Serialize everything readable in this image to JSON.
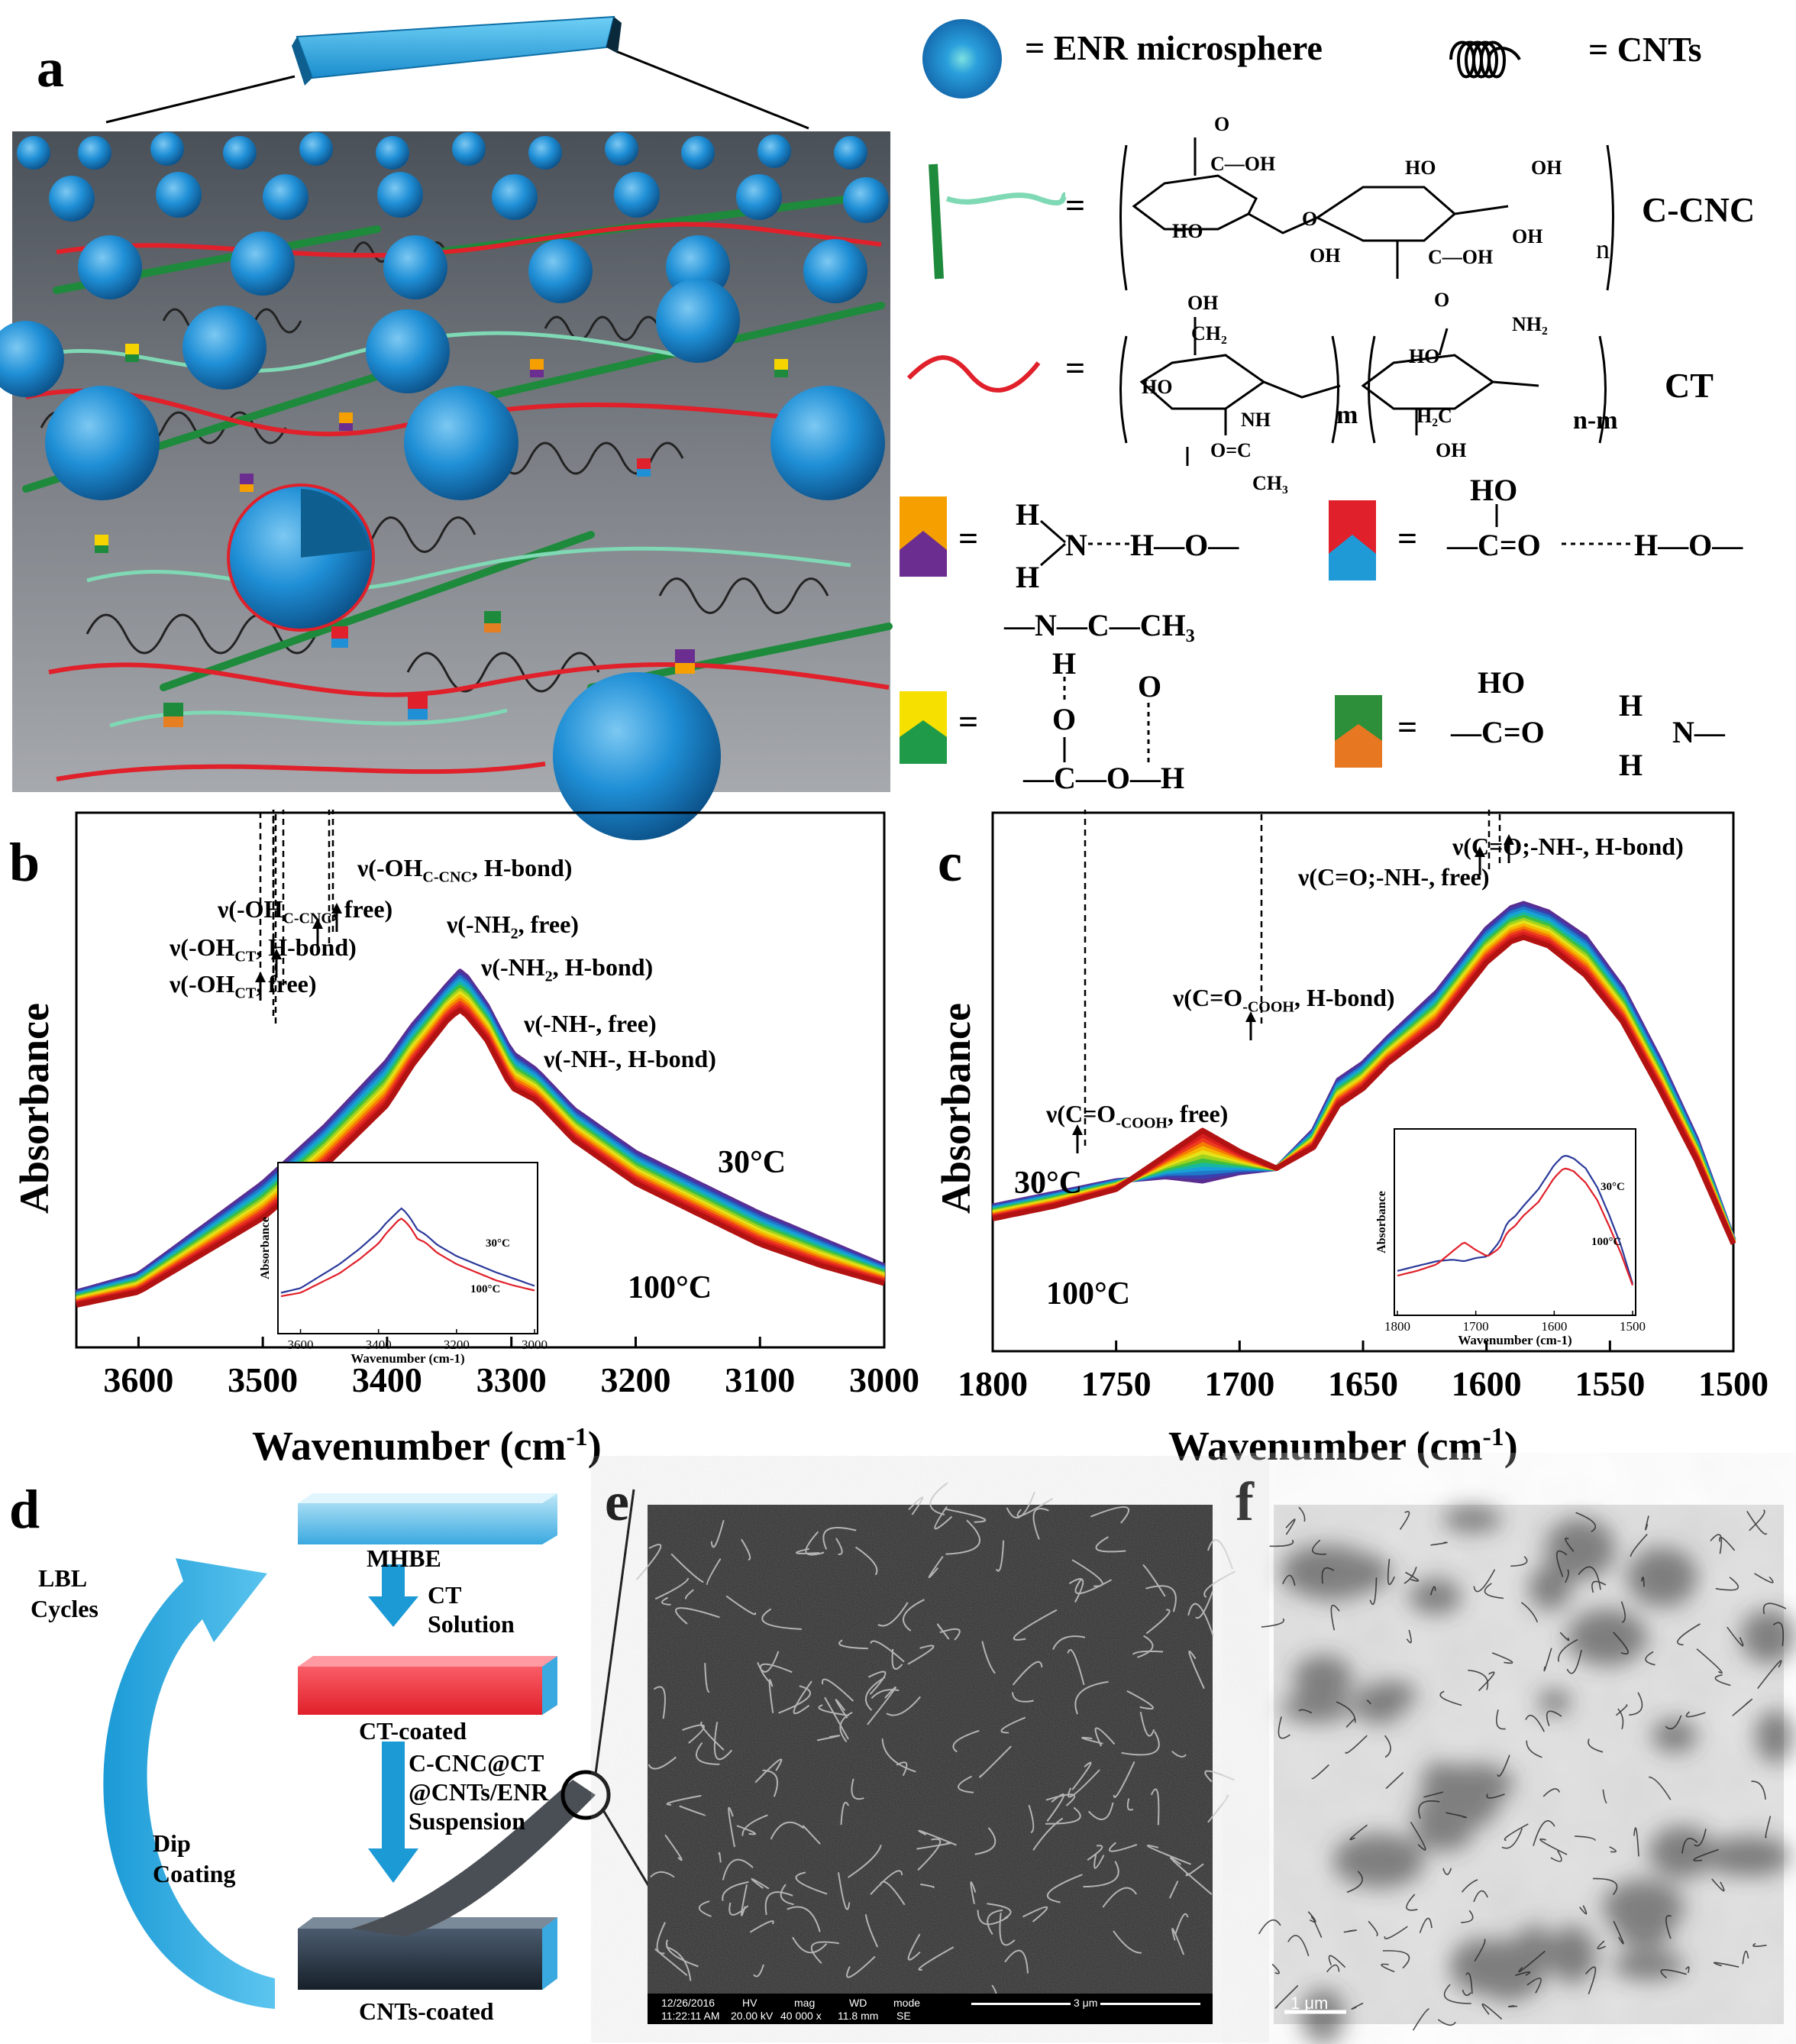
{
  "panels": {
    "a": "a",
    "b": "b",
    "c": "c",
    "d": "d",
    "e": "e",
    "f": "f"
  },
  "legend": {
    "enr": "= ENR microsphere",
    "cnts": "= CNTs",
    "ccnc_label": "C-CNC",
    "ct_label": "CT",
    "eq": "="
  },
  "chem": {
    "ccnc_groups": [
      "O",
      "C—OH",
      "HO",
      "OH",
      "HO",
      "OH",
      "OH",
      "O",
      "C—OH",
      "O",
      "n"
    ],
    "ct_groups": [
      "OH",
      "CH₂",
      "HO",
      "NH",
      "O=C",
      "CH₃",
      "m",
      "NH₂",
      "HO",
      "H₂C",
      "OH",
      "n-m"
    ],
    "hb1": [
      "H",
      "N",
      "H",
      "H—O—"
    ],
    "hb2": [
      "HO",
      "—C=O",
      "H—O—"
    ],
    "hb3": [
      "—N—C—CH₃",
      "H",
      "O",
      "O",
      "—C—O—H"
    ],
    "hb4": [
      "HO",
      "—C=O",
      "H",
      "N—",
      "H"
    ]
  },
  "chart_data": [
    {
      "type": "line",
      "panel": "b",
      "xlabel": "Wavenumber (cm",
      "xlabel_sup": "-1",
      "xlabel_close": ")",
      "ylabel": "Absorbance",
      "xlim": [
        3650,
        3000
      ],
      "x_ticks": [
        "3600",
        "3500",
        "3400",
        "3300",
        "3200",
        "3100",
        "3000"
      ],
      "temp_high": "30",
      "temp_low": "100",
      "temp_unit": "°C",
      "series": [
        {
          "name": "30°C",
          "x": [
            3650,
            3600,
            3500,
            3450,
            3400,
            3380,
            3350,
            3340,
            3320,
            3300,
            3280,
            3250,
            3200,
            3150,
            3100,
            3050,
            3000
          ],
          "y": [
            0.05,
            0.09,
            0.3,
            0.43,
            0.58,
            0.66,
            0.76,
            0.79,
            0.71,
            0.6,
            0.56,
            0.47,
            0.37,
            0.3,
            0.23,
            0.17,
            0.11
          ]
        },
        {
          "name": "100°C",
          "x": [
            3650,
            3600,
            3500,
            3450,
            3400,
            3380,
            3350,
            3340,
            3320,
            3300,
            3280,
            3250,
            3200,
            3150,
            3100,
            3050,
            3000
          ],
          "y": [
            0.02,
            0.05,
            0.22,
            0.34,
            0.48,
            0.57,
            0.68,
            0.7,
            0.63,
            0.52,
            0.49,
            0.4,
            0.3,
            0.23,
            0.16,
            0.11,
            0.07
          ]
        }
      ],
      "annotations": [
        "ν(-OH",
        "C-CNC",
        ", H-bond)",
        "ν(-OH",
        "C-CNC",
        ", free)",
        "ν(-NH",
        "2",
        ", free)",
        "ν(-OH",
        "CT",
        ", H-bond)",
        "ν(-NH",
        "2",
        ", H-bond)",
        "ν(-OH",
        "CT",
        ", free)",
        "ν(-NH-, free)",
        "ν(-NH-, H-bond)"
      ],
      "inset": {
        "xlabel": "Wavenumber (cm",
        "xlabel_sup": "-1",
        "xlabel_close": ")",
        "ylabel": "Absorbance",
        "x_ticks": [
          "3600",
          "3400",
          "3200",
          "3000"
        ],
        "labels": [
          "30°C",
          "100°C"
        ]
      }
    },
    {
      "type": "line",
      "panel": "c",
      "xlabel": "Wavenumber (cm",
      "xlabel_sup": "-1",
      "xlabel_close": ")",
      "ylabel": "Absorbance",
      "xlim": [
        1800,
        1500
      ],
      "x_ticks": [
        "1800",
        "1750",
        "1700",
        "1650",
        "1600",
        "1550",
        "1500"
      ],
      "temp_high": "30",
      "temp_low": "100",
      "temp_unit": "°C",
      "series": [
        {
          "name": "30°C",
          "x": [
            1800,
            1775,
            1750,
            1730,
            1715,
            1700,
            1685,
            1670,
            1660,
            1650,
            1640,
            1620,
            1600,
            1590,
            1585,
            1575,
            1560,
            1545,
            1530,
            1515,
            1500
          ],
          "y": [
            0.22,
            0.25,
            0.28,
            0.29,
            0.28,
            0.3,
            0.31,
            0.4,
            0.52,
            0.56,
            0.62,
            0.73,
            0.88,
            0.93,
            0.94,
            0.92,
            0.86,
            0.74,
            0.57,
            0.38,
            0.14
          ]
        },
        {
          "name": "100°C",
          "x": [
            1800,
            1775,
            1750,
            1730,
            1715,
            1700,
            1685,
            1670,
            1660,
            1650,
            1640,
            1620,
            1600,
            1590,
            1585,
            1575,
            1560,
            1545,
            1530,
            1515,
            1500
          ],
          "y": [
            0.19,
            0.22,
            0.26,
            0.34,
            0.4,
            0.35,
            0.31,
            0.36,
            0.46,
            0.5,
            0.56,
            0.65,
            0.8,
            0.85,
            0.86,
            0.84,
            0.77,
            0.66,
            0.5,
            0.33,
            0.13
          ]
        }
      ],
      "annotations": [
        "ν(C=O;-NH-, H-bond)",
        "ν(C=O;-NH-, free)",
        "ν(C=O",
        "-COOH",
        ", H-bond)",
        "ν(C=O",
        "-COOH",
        ", free)"
      ],
      "inset": {
        "xlabel": "Wavenumber (cm",
        "xlabel_sup": "-1",
        "xlabel_close": ")",
        "ylabel": "Absorbance",
        "x_ticks": [
          "1800",
          "1700",
          "1600",
          "1500"
        ],
        "labels": [
          "30°C",
          "100°C"
        ]
      }
    }
  ],
  "process": {
    "mhbe": "MHBE",
    "ct_solution_1": "CT",
    "ct_solution_2": "Solution",
    "ct_coated": "CT-coated",
    "susp_1": "C-CNC@CT",
    "susp_2": "@CNTs/ENR",
    "susp_3": "Suspension",
    "cnts_coated": "CNTs-coated",
    "lbl_1": "LBL",
    "lbl_2": "Cycles",
    "dip_1": "Dip",
    "dip_2": "Coating"
  },
  "sem_bar": [
    "12/26/2016",
    "11:22:11 AM",
    "HV",
    "20.00 kV",
    "mag",
    "40 000 x",
    "WD",
    "11.8 mm",
    "mode",
    "SE",
    "3 μm"
  ],
  "tem_scale": "1 μm",
  "colors": {
    "sphere": "#1f8fd6",
    "chitosan": "#e0202a",
    "cnc": "#1e8a3c",
    "cnc_light": "#7fd9b4",
    "block_blue": "#3aa9e0",
    "block_red": "#ef3340",
    "block_dark": "#2c3a48",
    "arrow_blue": "#1b9ad6"
  }
}
